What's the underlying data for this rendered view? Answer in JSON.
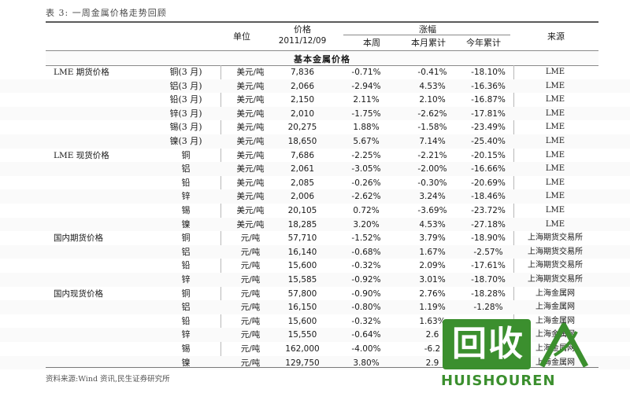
{
  "caption": "表 3:  一周金属价格走势回顾",
  "header": {
    "unit": "单位",
    "price": "价格",
    "date": "2011/12/09",
    "change": "涨幅",
    "week": "本周",
    "month": "本月累计",
    "year": "今年累计",
    "source": "来源"
  },
  "section": "基本金属价格",
  "rows": [
    {
      "group": "LME 期货价格",
      "name": "铜(3 月)",
      "unit": "美元/吨",
      "price": "7,836",
      "week": "-0.71%",
      "month": "-0.41%",
      "year": "-18.10%",
      "source": "LME"
    },
    {
      "group": "",
      "name": "铝(3 月)",
      "unit": "美元/吨",
      "price": "2,066",
      "week": "-2.94%",
      "month": "4.53%",
      "year": "-16.36%",
      "source": "LME"
    },
    {
      "group": "",
      "name": "铅(3 月)",
      "unit": "美元/吨",
      "price": "2,150",
      "week": "2.11%",
      "month": "2.10%",
      "year": "-16.87%",
      "source": "LME"
    },
    {
      "group": "",
      "name": "锌(3 月)",
      "unit": "美元/吨",
      "price": "2,010",
      "week": "-1.75%",
      "month": "-2.62%",
      "year": "-17.81%",
      "source": "LME"
    },
    {
      "group": "",
      "name": "锡(3 月)",
      "unit": "美元/吨",
      "price": "20,275",
      "week": "1.88%",
      "month": "-1.58%",
      "year": "-23.49%",
      "source": "LME"
    },
    {
      "group": "",
      "name": "镍(3 月)",
      "unit": "美元/吨",
      "price": "18,650",
      "week": "5.67%",
      "month": "7.14%",
      "year": "-25.40%",
      "source": "LME"
    },
    {
      "group": "LME 现货价格",
      "name": "铜",
      "unit": "美元/吨",
      "price": "7,686",
      "week": "-2.25%",
      "month": "-2.21%",
      "year": "-20.15%",
      "source": "LME"
    },
    {
      "group": "",
      "name": "铝",
      "unit": "美元/吨",
      "price": "2,061",
      "week": "-3.05%",
      "month": "-2.00%",
      "year": "-16.66%",
      "source": "LME"
    },
    {
      "group": "",
      "name": "铅",
      "unit": "美元/吨",
      "price": "2,085",
      "week": "-0.26%",
      "month": "-0.30%",
      "year": "-20.69%",
      "source": "LME"
    },
    {
      "group": "",
      "name": "锌",
      "unit": "美元/吨",
      "price": "2,006",
      "week": "-2.62%",
      "month": "3.24%",
      "year": "-18.46%",
      "source": "LME"
    },
    {
      "group": "",
      "name": "锡",
      "unit": "美元/吨",
      "price": "20,105",
      "week": "0.72%",
      "month": "-3.69%",
      "year": "-23.72%",
      "source": "LME"
    },
    {
      "group": "",
      "name": "镍",
      "unit": "美元/吨",
      "price": "18,285",
      "week": "3.20%",
      "month": "4.53%",
      "year": "-27.18%",
      "source": "LME"
    },
    {
      "group": "国内期货价格",
      "name": "铜",
      "unit": "元/吨",
      "price": "57,710",
      "week": "-1.52%",
      "month": "3.79%",
      "year": "-18.90%",
      "source": "上海期货交易所"
    },
    {
      "group": "",
      "name": "铝",
      "unit": "元/吨",
      "price": "16,140",
      "week": "-0.68%",
      "month": "1.67%",
      "year": "-2.57%",
      "source": "上海期货交易所"
    },
    {
      "group": "",
      "name": "铅",
      "unit": "元/吨",
      "price": "15,600",
      "week": "-0.32%",
      "month": "2.09%",
      "year": "-17.61%",
      "source": "上海期货交易所"
    },
    {
      "group": "",
      "name": "锌",
      "unit": "元/吨",
      "price": "15,585",
      "week": "-0.92%",
      "month": "3.01%",
      "year": "-18.70%",
      "source": "上海期货交易所"
    },
    {
      "group": "国内现货价格",
      "name": "铜",
      "unit": "元/吨",
      "price": "57,800",
      "week": "-0.90%",
      "month": "2.76%",
      "year": "-18.28%",
      "source": "上海金属网"
    },
    {
      "group": "",
      "name": "铝",
      "unit": "元/吨",
      "price": "16,150",
      "week": "-0.80%",
      "month": "1.19%",
      "year": "-1.28%",
      "source": "上海金属网"
    },
    {
      "group": "",
      "name": "铅",
      "unit": "元/吨",
      "price": "15,600",
      "week": "-0.32%",
      "month": "1.63%",
      "year": "",
      "source": "上海金属网"
    },
    {
      "group": "",
      "name": "锌",
      "unit": "元/吨",
      "price": "15,550",
      "week": "-0.64%",
      "month": "2.6",
      "year": "",
      "source": "上海金属网"
    },
    {
      "group": "",
      "name": "锡",
      "unit": "元/吨",
      "price": "162,000",
      "week": "-4.00%",
      "month": "-6.2",
      "year": "",
      "source": "上海金属网"
    },
    {
      "group": "",
      "name": "镍",
      "unit": "元/吨",
      "price": "129,750",
      "week": "3.80%",
      "month": "2.9",
      "year": "",
      "source": "上海金属网"
    }
  ],
  "footnote": "资料来源:Wind 资讯,民生证券研究所",
  "watermark": {
    "mark": "回收",
    "latin": "HUISHOUREN",
    "color": "#3b8f2e"
  }
}
